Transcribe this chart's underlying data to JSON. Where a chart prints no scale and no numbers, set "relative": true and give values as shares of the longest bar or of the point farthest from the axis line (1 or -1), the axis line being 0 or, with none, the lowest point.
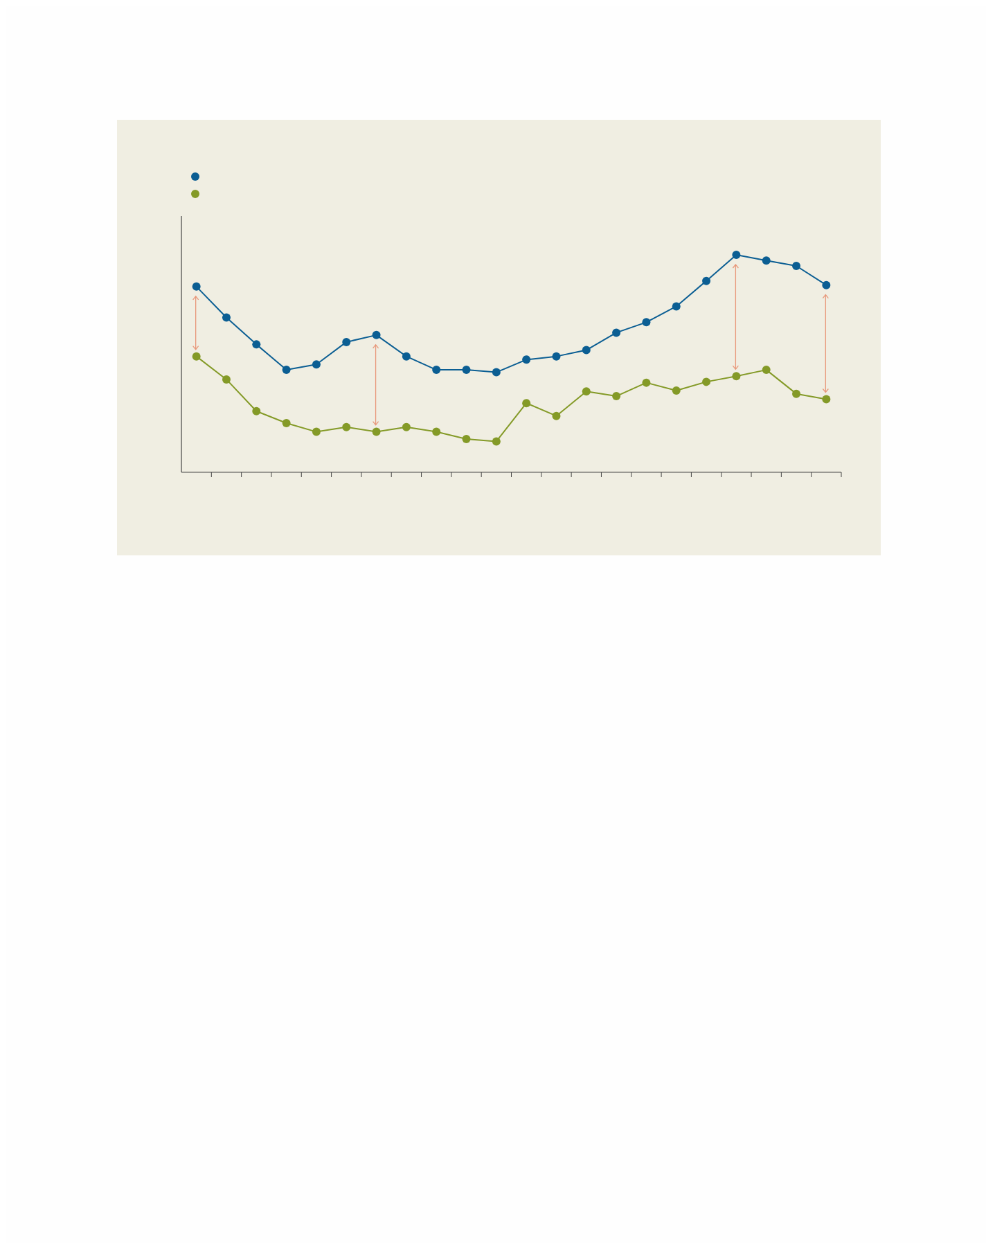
{
  "chart_data": {
    "type": "line",
    "relative": true,
    "categories": [
      null,
      null,
      null,
      null,
      null,
      null,
      null,
      null,
      null,
      null,
      null,
      null,
      null,
      null,
      null,
      null,
      null,
      null,
      null,
      null,
      null,
      null
    ],
    "series": [
      {
        "color": "#0b5e93",
        "values": [
          0.854,
          0.712,
          0.588,
          0.471,
          0.496,
          0.599,
          0.631,
          0.533,
          0.471,
          0.471,
          0.46,
          0.518,
          0.533,
          0.562,
          0.642,
          0.69,
          0.763,
          0.88,
          1,
          0.974,
          0.949,
          0.861
        ]
      },
      {
        "color": "#849a27",
        "values": [
          0.533,
          0.427,
          0.281,
          0.226,
          0.186,
          0.208,
          0.186,
          0.208,
          0.186,
          0.153,
          0.142,
          0.318,
          0.259,
          0.372,
          0.35,
          0.412,
          0.376,
          0.416,
          0.442,
          0.471,
          0.361,
          0.336
        ]
      }
    ],
    "marker": "circle",
    "line_style": "solid",
    "grid": false
  }
}
